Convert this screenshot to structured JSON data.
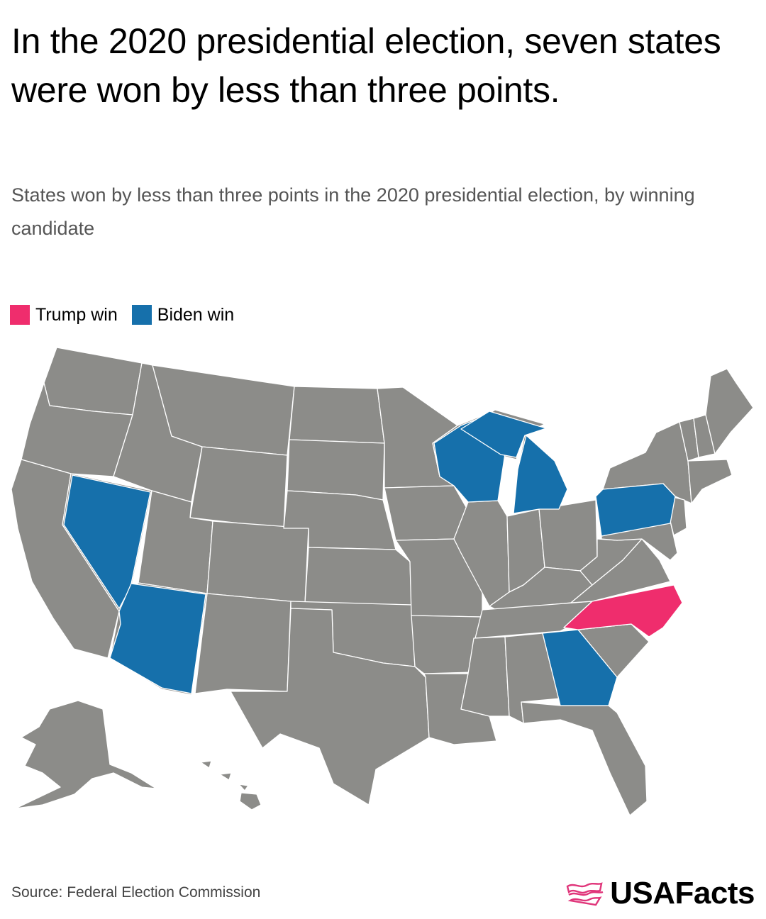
{
  "title": "In the 2020 presidential election, seven states were won by less than three points.",
  "subtitle": "States won by less than three points in the 2020 presidential election, by winning candidate",
  "legend": [
    {
      "label": "Trump win",
      "color": "#ef2d6d"
    },
    {
      "label": "Biden win",
      "color": "#1670ab"
    }
  ],
  "colors": {
    "default_state": "#8c8c89",
    "trump": "#ef2d6d",
    "biden": "#1670ab",
    "border": "#ffffff"
  },
  "highlighted_states": {
    "trump": [
      "North Carolina"
    ],
    "biden": [
      "Wisconsin",
      "Michigan",
      "Pennsylvania",
      "Nevada",
      "Arizona",
      "Georgia"
    ]
  },
  "source": "Source: Federal Election Commission",
  "brand": {
    "name": "USAFacts",
    "icon": "usafacts-flag-icon"
  }
}
